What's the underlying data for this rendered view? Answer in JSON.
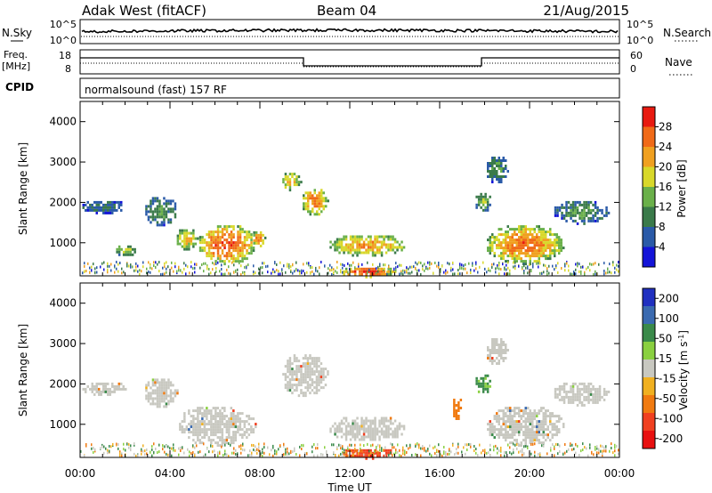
{
  "header": {
    "station": "Adak West (fitACF)",
    "beam": "Beam 04",
    "date": "21/Aug/2015"
  },
  "top_panels": {
    "nsky": {
      "label": "N.Sky",
      "ticks": [
        "10^5",
        "10^0"
      ],
      "right_label": "N.Search",
      "right_ticks": [
        "10^5",
        "10^0"
      ]
    },
    "freq": {
      "label_line1": "Freq.",
      "label_line2": "[MHz]",
      "ticks": [
        "18",
        "8"
      ],
      "right_label": "Nave",
      "right_ticks": [
        "60",
        "0"
      ]
    },
    "cpid": {
      "label": "CPID",
      "value": "normalsound (fast) 157 RF"
    }
  },
  "chart_data": [
    {
      "type": "heatmap",
      "title": "",
      "xlabel": "Time UT",
      "ylabel": "Slant Range [km]",
      "xlim": [
        "00:00",
        "24:00"
      ],
      "ylim": [
        180,
        4500
      ],
      "x_ticks": [
        "00:00",
        "04:00",
        "08:00",
        "12:00",
        "16:00",
        "20:00",
        "00:00"
      ],
      "y_ticks": [
        1000,
        2000,
        3000,
        4000
      ],
      "colorbar": {
        "label": "Power [dB]",
        "range": [
          0,
          32
        ],
        "ticks": [
          4,
          8,
          12,
          16,
          20,
          24,
          28
        ],
        "colors": [
          "#1414d8",
          "#2a5aa8",
          "#3a7a4a",
          "#6ab04a",
          "#d8d82a",
          "#f0a020",
          "#f06a18",
          "#e81a10"
        ]
      },
      "echo_regions": [
        {
          "t": [
            0.0,
            2.0
          ],
          "r": [
            1750,
            2100
          ],
          "dB": 8
        },
        {
          "t": [
            1.5,
            2.5
          ],
          "r": [
            700,
            1000
          ],
          "dB": 14
        },
        {
          "t": [
            2.8,
            4.3
          ],
          "r": [
            1450,
            2200
          ],
          "dB": 10
        },
        {
          "t": [
            4.2,
            5.2
          ],
          "r": [
            850,
            1400
          ],
          "dB": 18
        },
        {
          "t": [
            5.2,
            7.8
          ],
          "r": [
            500,
            1500
          ],
          "dB": 24
        },
        {
          "t": [
            7.6,
            8.2
          ],
          "r": [
            900,
            1350
          ],
          "dB": 22
        },
        {
          "t": [
            8.9,
            9.8
          ],
          "r": [
            2300,
            2800
          ],
          "dB": 18
        },
        {
          "t": [
            9.8,
            11.0
          ],
          "r": [
            1700,
            2400
          ],
          "dB": 22
        },
        {
          "t": [
            11.0,
            14.5
          ],
          "r": [
            700,
            1250
          ],
          "dB": 20
        },
        {
          "t": [
            11.5,
            14.0
          ],
          "r": [
            180,
            450
          ],
          "dB": 26
        },
        {
          "t": [
            17.5,
            18.3
          ],
          "r": [
            1800,
            2300
          ],
          "dB": 12
        },
        {
          "t": [
            18.0,
            19.0
          ],
          "r": [
            2500,
            3200
          ],
          "dB": 10
        },
        {
          "t": [
            18.0,
            21.5
          ],
          "r": [
            500,
            1500
          ],
          "dB": 22
        },
        {
          "t": [
            21.0,
            23.5
          ],
          "r": [
            1500,
            2100
          ],
          "dB": 10
        }
      ]
    },
    {
      "type": "heatmap",
      "title": "",
      "xlabel": "Time UT",
      "ylabel": "Slant Range [km]",
      "xlim": [
        "00:00",
        "24:00"
      ],
      "ylim": [
        180,
        4500
      ],
      "x_ticks": [
        "00:00",
        "04:00",
        "08:00",
        "12:00",
        "16:00",
        "20:00",
        "00:00"
      ],
      "y_ticks": [
        1000,
        2000,
        3000,
        4000
      ],
      "colorbar": {
        "label": "Velocity [m s^-1]",
        "ticks": [
          "200",
          "100",
          "50",
          "15",
          "-15",
          "-50",
          "-100",
          "-200"
        ],
        "colors": [
          "#2030c0",
          "#3a6ab0",
          "#3a8a4a",
          "#8ad040",
          "#c8c8c0",
          "#f0b020",
          "#f07a10",
          "#f04020",
          "#e81010"
        ]
      },
      "echo_regions": [
        {
          "t": [
            0.0,
            2.0
          ],
          "r": [
            1750,
            2100
          ],
          "v": 0
        },
        {
          "t": [
            2.8,
            4.3
          ],
          "r": [
            1450,
            2200
          ],
          "v": 0
        },
        {
          "t": [
            4.2,
            7.8
          ],
          "r": [
            500,
            1500
          ],
          "v": 0
        },
        {
          "t": [
            8.9,
            11.0
          ],
          "r": [
            1700,
            2800
          ],
          "v": 0
        },
        {
          "t": [
            11.0,
            14.5
          ],
          "r": [
            600,
            1250
          ],
          "v": 0
        },
        {
          "t": [
            11.5,
            14.0
          ],
          "r": [
            180,
            450
          ],
          "v": -100
        },
        {
          "t": [
            16.5,
            17.0
          ],
          "r": [
            1100,
            1700
          ],
          "v": -60
        },
        {
          "t": [
            17.5,
            18.3
          ],
          "r": [
            1800,
            2300
          ],
          "v": 40
        },
        {
          "t": [
            18.0,
            19.0
          ],
          "r": [
            2500,
            3200
          ],
          "v": 0
        },
        {
          "t": [
            18.0,
            21.5
          ],
          "r": [
            500,
            1500
          ],
          "v": 0
        },
        {
          "t": [
            21.0,
            23.5
          ],
          "r": [
            1500,
            2100
          ],
          "v": 0
        }
      ]
    }
  ]
}
